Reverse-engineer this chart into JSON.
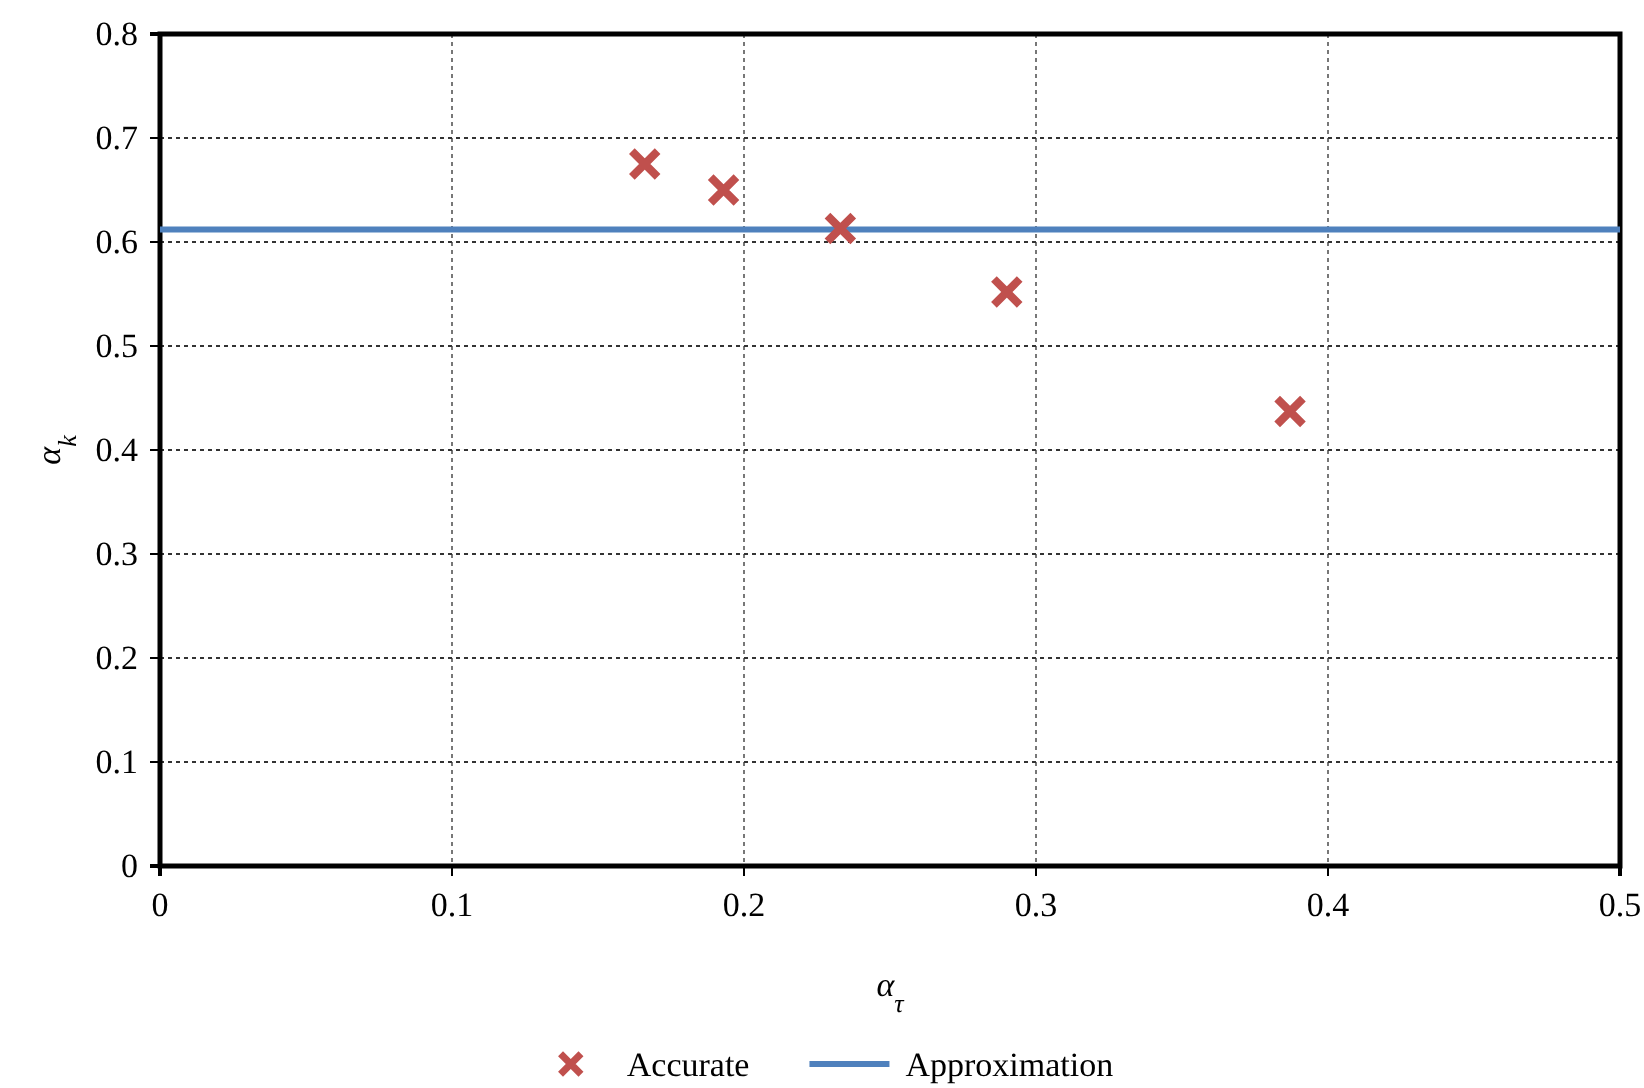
{
  "chart_data": {
    "type": "scatter",
    "xlabel": "α$_{τ}$",
    "ylabel": "α$_{k}$",
    "xlim": [
      0,
      0.5
    ],
    "xticks": [
      0,
      0.1,
      0.2,
      0.3,
      0.4,
      0.5
    ],
    "ylim": [
      0,
      0.8
    ],
    "yticks": [
      0,
      0.1,
      0.2,
      0.3,
      0.4,
      0.5,
      0.6,
      0.7,
      0.8
    ],
    "grid": true,
    "legend": "bottom",
    "series": [
      {
        "name": "Accurate",
        "marker": "cross",
        "color": "#c0504d",
        "x": [
          0.166,
          0.193,
          0.233,
          0.29,
          0.387
        ],
        "values": [
          0.675,
          0.65,
          0.613,
          0.552,
          0.437
        ]
      },
      {
        "name": "Approximation",
        "type": "line",
        "color": "#4f81bd",
        "line_style": "solid",
        "marker": "none",
        "x": [
          0,
          0.5
        ],
        "values": [
          0.612,
          0.612
        ]
      }
    ]
  }
}
